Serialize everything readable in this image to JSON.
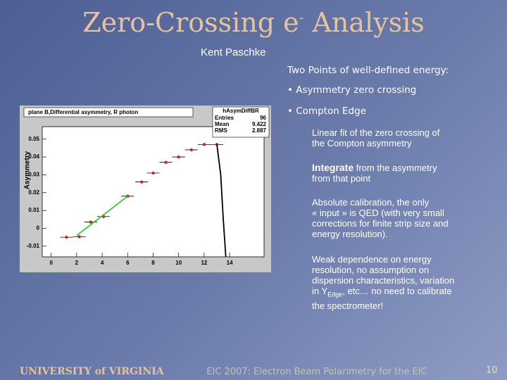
{
  "header": {
    "title_before": "Zero-Crossing e",
    "title_sup": "-",
    "title_after": " Analysis",
    "author": "Kent Paschke"
  },
  "bullets": {
    "intro": "Two Points of well-defined energy:",
    "items": [
      "• Asymmetry zero crossing",
      "• Compton Edge"
    ]
  },
  "notes": {
    "p1": [
      "Linear fit of the zero crossing of",
      "the Compton asymmetry"
    ],
    "p2": {
      "bold": "Integrate",
      "first": " from the asymmetry",
      "rest": [
        "from that point"
      ]
    },
    "p3": [
      "Absolute calibration, the only",
      "« input » is QED (with very small",
      "corrections for finite strip size and",
      "energy resolution)."
    ],
    "p4": {
      "before": [
        "Weak dependence on energy",
        "resolution, no assumption on",
        "dispersion characteristics, variation"
      ],
      "a": "in Y",
      "sub": "Edge",
      "b": ", etc… no need to calibrate",
      "after": [
        "the spectrometer!"
      ]
    }
  },
  "footer": {
    "logo": "UNIVERSITY of VIRGINIA",
    "text": "EIC 2007: Electron Beam Polarimetry for the EIC",
    "page": "10"
  },
  "chart_data": {
    "type": "scatter",
    "title": "plane B,Differential asymmetry, R photon",
    "ylabel": "Asymmetry",
    "stats": {
      "name": "hAsymDiffBR",
      "rows": [
        [
          "Entries",
          "96"
        ],
        [
          "Mean",
          "9.422"
        ],
        [
          "RMS",
          "2.887"
        ]
      ]
    },
    "xlim": [
      -0.7,
      16.7
    ],
    "ylim": [
      -0.016,
      0.057
    ],
    "xticks": [
      0,
      2,
      4,
      6,
      8,
      10,
      12,
      14
    ],
    "yticks": [
      -0.01,
      0,
      0.01,
      0.02,
      0.03,
      0.04,
      0.05
    ],
    "series": [
      {
        "style": "points",
        "color": "#cc2222",
        "x": [
          1.2,
          2.2,
          3.1,
          4.1,
          6.0,
          7.1,
          8.0,
          9.0,
          10.0,
          11.0,
          12.0,
          13.0
        ],
        "values": [
          -0.005,
          -0.0047,
          0.0035,
          0.0066,
          0.018,
          0.026,
          0.031,
          0.037,
          0.04,
          0.044,
          0.047,
          0.047
        ],
        "xerr": [
          0.5,
          0.5,
          0.5,
          0.5,
          0.5,
          0.5,
          0.5,
          0.5,
          0.5,
          0.5,
          0.5,
          0.5
        ]
      },
      {
        "style": "line",
        "color": "#33cc33",
        "x": [
          2,
          6
        ],
        "values": [
          -0.004,
          0.018
        ]
      },
      {
        "style": "line",
        "color": "#000000",
        "x": [
          13.0,
          13.3,
          13.5,
          13.7
        ],
        "values": [
          0.047,
          0.03,
          0.005,
          -0.016
        ]
      }
    ]
  }
}
